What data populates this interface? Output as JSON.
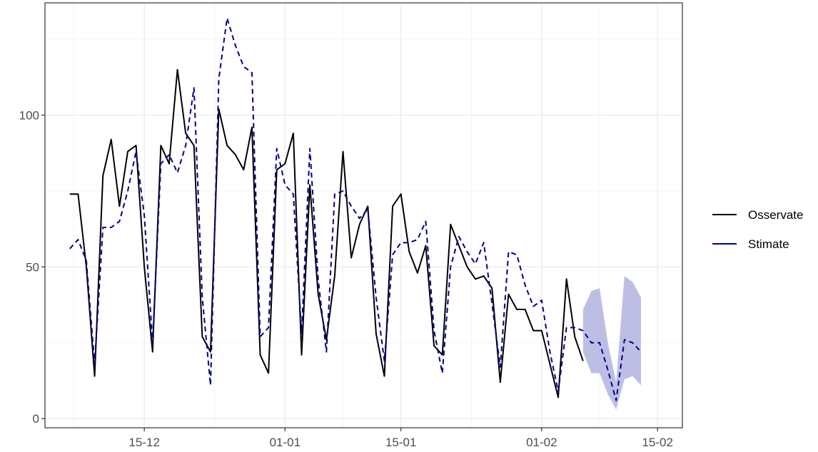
{
  "chart_data": {
    "type": "line",
    "title": "",
    "xlabel": "",
    "ylabel": "",
    "x_axis": {
      "type": "date",
      "range": [
        "2021-12-03",
        "2022-02-18"
      ],
      "tick_dates": [
        "2021-12-15",
        "2022-01-01",
        "2022-01-15",
        "2022-02-01",
        "2022-02-15"
      ],
      "tick_labels": [
        "15-12",
        "01-01",
        "15-01",
        "01-02",
        "15-02"
      ]
    },
    "y_axis": {
      "range": [
        -3,
        137
      ],
      "ticks": [
        0,
        50,
        100
      ],
      "tick_labels": [
        "0",
        "50",
        "100"
      ]
    },
    "grid": true,
    "legend": {
      "position": "right",
      "entries": [
        {
          "label": "Osservate",
          "color": "#000000",
          "linestyle": "solid"
        },
        {
          "label": "Stimate",
          "color": "#00008b",
          "linestyle": "dashed"
        }
      ]
    },
    "colors": {
      "observed": "#000000",
      "estimated": "#00008b",
      "interval": "#b3b3e0",
      "panel_border": "#333333",
      "grid": "#ebebeb"
    },
    "series": [
      {
        "name": "Osservate",
        "style": "solid",
        "points": [
          [
            "2021-12-06",
            74
          ],
          [
            "2021-12-07",
            74
          ],
          [
            "2021-12-08",
            50
          ],
          [
            "2021-12-09",
            14
          ],
          [
            "2021-12-10",
            80
          ],
          [
            "2021-12-11",
            92
          ],
          [
            "2021-12-12",
            70
          ],
          [
            "2021-12-13",
            88
          ],
          [
            "2021-12-14",
            90
          ],
          [
            "2021-12-15",
            50
          ],
          [
            "2021-12-16",
            22
          ],
          [
            "2021-12-17",
            90
          ],
          [
            "2021-12-18",
            84
          ],
          [
            "2021-12-19",
            115
          ],
          [
            "2021-12-20",
            94
          ],
          [
            "2021-12-21",
            90
          ],
          [
            "2021-12-22",
            27
          ],
          [
            "2021-12-23",
            22
          ],
          [
            "2021-12-24",
            102
          ],
          [
            "2021-12-25",
            90
          ],
          [
            "2021-12-26",
            87
          ],
          [
            "2021-12-27",
            82
          ],
          [
            "2021-12-28",
            96
          ],
          [
            "2021-12-29",
            21
          ],
          [
            "2021-12-30",
            15
          ],
          [
            "2021-12-31",
            82
          ],
          [
            "2022-01-01",
            84
          ],
          [
            "2022-01-02",
            94
          ],
          [
            "2022-01-03",
            21
          ],
          [
            "2022-01-04",
            77
          ],
          [
            "2022-01-05",
            41
          ],
          [
            "2022-01-06",
            26
          ],
          [
            "2022-01-07",
            47
          ],
          [
            "2022-01-08",
            88
          ],
          [
            "2022-01-09",
            53
          ],
          [
            "2022-01-10",
            64
          ],
          [
            "2022-01-11",
            70
          ],
          [
            "2022-01-12",
            28
          ],
          [
            "2022-01-13",
            14
          ],
          [
            "2022-01-14",
            70
          ],
          [
            "2022-01-15",
            74
          ],
          [
            "2022-01-16",
            55
          ],
          [
            "2022-01-17",
            48
          ],
          [
            "2022-01-18",
            57
          ],
          [
            "2022-01-19",
            24
          ],
          [
            "2022-01-20",
            21
          ],
          [
            "2022-01-21",
            64
          ],
          [
            "2022-01-22",
            57
          ],
          [
            "2022-01-23",
            50
          ],
          [
            "2022-01-24",
            46
          ],
          [
            "2022-01-25",
            47
          ],
          [
            "2022-01-26",
            43
          ],
          [
            "2022-01-27",
            12
          ],
          [
            "2022-01-28",
            41
          ],
          [
            "2022-01-29",
            36
          ],
          [
            "2022-01-30",
            36
          ],
          [
            "2022-01-31",
            29
          ],
          [
            "2022-02-01",
            29
          ],
          [
            "2022-02-02",
            18
          ],
          [
            "2022-02-03",
            7
          ],
          [
            "2022-02-04",
            46
          ],
          [
            "2022-02-05",
            27
          ],
          [
            "2022-02-06",
            19
          ]
        ]
      },
      {
        "name": "Stimate",
        "style": "dashed",
        "points": [
          [
            "2021-12-06",
            56
          ],
          [
            "2021-12-07",
            59
          ],
          [
            "2021-12-08",
            52
          ],
          [
            "2021-12-09",
            18
          ],
          [
            "2021-12-10",
            63
          ],
          [
            "2021-12-11",
            63
          ],
          [
            "2021-12-12",
            65
          ],
          [
            "2021-12-13",
            75
          ],
          [
            "2021-12-14",
            88
          ],
          [
            "2021-12-15",
            67
          ],
          [
            "2021-12-16",
            25
          ],
          [
            "2021-12-17",
            84
          ],
          [
            "2021-12-18",
            87
          ],
          [
            "2021-12-19",
            81
          ],
          [
            "2021-12-20",
            90
          ],
          [
            "2021-12-21",
            109
          ],
          [
            "2021-12-22",
            40
          ],
          [
            "2021-12-23",
            11
          ],
          [
            "2021-12-24",
            112
          ],
          [
            "2021-12-25",
            132
          ],
          [
            "2021-12-26",
            123
          ],
          [
            "2021-12-27",
            116
          ],
          [
            "2021-12-28",
            114
          ],
          [
            "2021-12-29",
            27
          ],
          [
            "2021-12-30",
            30
          ],
          [
            "2021-12-31",
            89
          ],
          [
            "2022-01-01",
            77
          ],
          [
            "2022-01-02",
            74
          ],
          [
            "2022-01-03",
            28
          ],
          [
            "2022-01-04",
            89
          ],
          [
            "2022-01-05",
            46
          ],
          [
            "2022-01-06",
            22
          ],
          [
            "2022-01-07",
            74
          ],
          [
            "2022-01-08",
            75
          ],
          [
            "2022-01-09",
            70
          ],
          [
            "2022-01-10",
            66
          ],
          [
            "2022-01-11",
            69
          ],
          [
            "2022-01-12",
            40
          ],
          [
            "2022-01-13",
            19
          ],
          [
            "2022-01-14",
            54
          ],
          [
            "2022-01-15",
            58
          ],
          [
            "2022-01-16",
            58
          ],
          [
            "2022-01-17",
            59
          ],
          [
            "2022-01-18",
            65
          ],
          [
            "2022-01-19",
            29
          ],
          [
            "2022-01-20",
            15
          ],
          [
            "2022-01-21",
            50
          ],
          [
            "2022-01-22",
            60
          ],
          [
            "2022-01-23",
            55
          ],
          [
            "2022-01-24",
            51
          ],
          [
            "2022-01-25",
            58
          ],
          [
            "2022-01-26",
            38
          ],
          [
            "2022-01-27",
            17
          ],
          [
            "2022-01-28",
            55
          ],
          [
            "2022-01-29",
            54
          ],
          [
            "2022-01-30",
            44
          ],
          [
            "2022-01-31",
            37
          ],
          [
            "2022-02-01",
            39
          ],
          [
            "2022-02-02",
            22
          ],
          [
            "2022-02-03",
            9
          ],
          [
            "2022-02-04",
            30
          ],
          [
            "2022-02-05",
            30
          ],
          [
            "2022-02-06",
            29
          ],
          [
            "2022-02-07",
            25
          ],
          [
            "2022-02-08",
            25
          ],
          [
            "2022-02-09",
            16
          ],
          [
            "2022-02-10",
            6
          ],
          [
            "2022-02-11",
            26
          ],
          [
            "2022-02-12",
            25
          ],
          [
            "2022-02-13",
            22
          ]
        ]
      }
    ],
    "interval": {
      "points": [
        [
          "2022-02-06",
          22,
          36
        ],
        [
          "2022-02-07",
          15,
          42
        ],
        [
          "2022-02-08",
          15,
          43
        ],
        [
          "2022-02-09",
          8,
          25
        ],
        [
          "2022-02-10",
          3,
          12
        ],
        [
          "2022-02-11",
          13,
          47
        ],
        [
          "2022-02-12",
          14,
          45
        ],
        [
          "2022-02-13",
          11,
          40
        ]
      ]
    }
  }
}
